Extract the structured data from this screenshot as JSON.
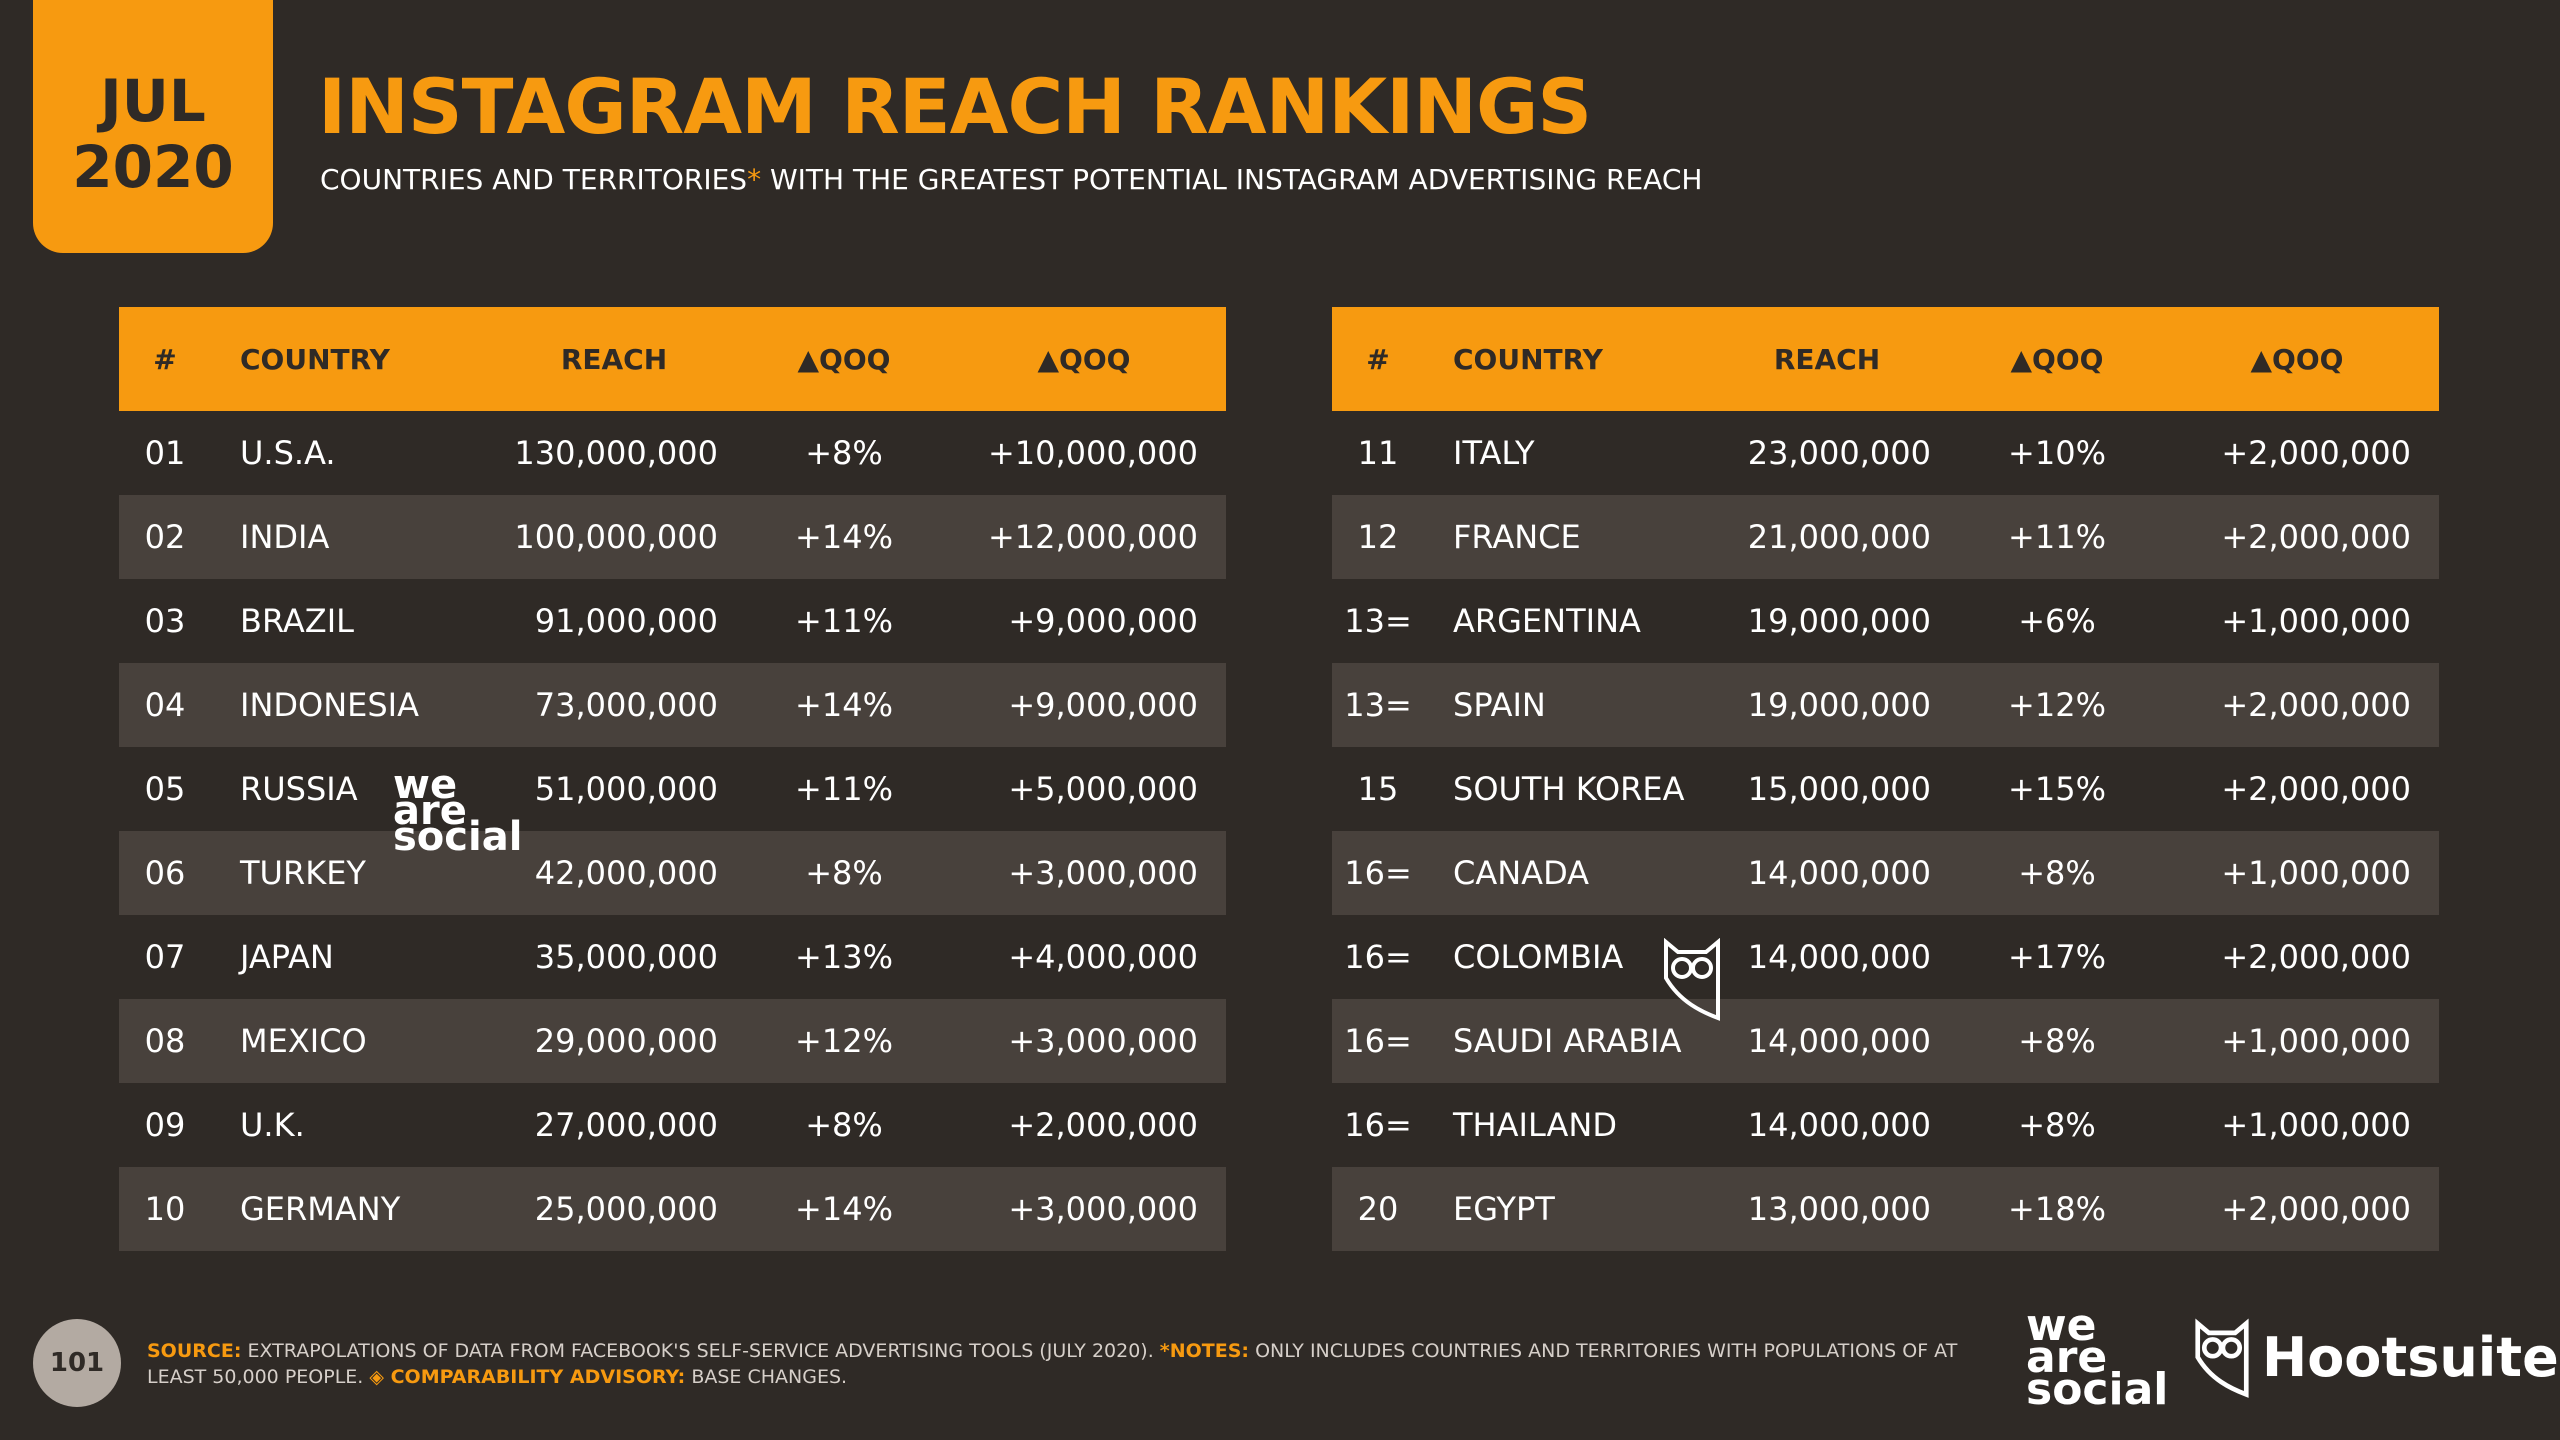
{
  "badge": {
    "month": "JUL",
    "year": "2020"
  },
  "header": {
    "title": "INSTAGRAM REACH RANKINGS",
    "subtitle_start": "COUNTRIES AND TERRITORIES",
    "subtitle_mark": "*",
    "subtitle_end": "WITH THE GREATEST POTENTIAL INSTAGRAM ADVERTISING REACH"
  },
  "tables": [
    {
      "columns": [
        "#",
        "COUNTRY",
        "REACH",
        "▲QOQ",
        "▲QOQ"
      ],
      "rows": [
        [
          "01",
          "U.S.A.",
          "130,000,000",
          "+8%",
          "+10,000,000"
        ],
        [
          "02",
          "INDIA",
          "100,000,000",
          "+14%",
          "+12,000,000"
        ],
        [
          "03",
          "BRAZIL",
          "91,000,000",
          "+11%",
          "+9,000,000"
        ],
        [
          "04",
          "INDONESIA",
          "73,000,000",
          "+14%",
          "+9,000,000"
        ],
        [
          "05",
          "RUSSIA",
          "51,000,000",
          "+11%",
          "+5,000,000"
        ],
        [
          "06",
          "TURKEY",
          "42,000,000",
          "+8%",
          "+3,000,000"
        ],
        [
          "07",
          "JAPAN",
          "35,000,000",
          "+13%",
          "+4,000,000"
        ],
        [
          "08",
          "MEXICO",
          "29,000,000",
          "+12%",
          "+3,000,000"
        ],
        [
          "09",
          "U.K.",
          "27,000,000",
          "+8%",
          "+2,000,000"
        ],
        [
          "10",
          "GERMANY",
          "25,000,000",
          "+14%",
          "+3,000,000"
        ]
      ]
    },
    {
      "columns": [
        "#",
        "COUNTRY",
        "REACH",
        "▲QOQ",
        "▲QOQ"
      ],
      "rows": [
        [
          "11",
          "ITALY",
          "23,000,000",
          "+10%",
          "+2,000,000"
        ],
        [
          "12",
          "FRANCE",
          "21,000,000",
          "+11%",
          "+2,000,000"
        ],
        [
          "13=",
          "ARGENTINA",
          "19,000,000",
          "+6%",
          "+1,000,000"
        ],
        [
          "13=",
          "SPAIN",
          "19,000,000",
          "+12%",
          "+2,000,000"
        ],
        [
          "15",
          "SOUTH KOREA",
          "15,000,000",
          "+15%",
          "+2,000,000"
        ],
        [
          "16=",
          "CANADA",
          "14,000,000",
          "+8%",
          "+1,000,000"
        ],
        [
          "16=",
          "COLOMBIA",
          "14,000,000",
          "+17%",
          "+2,000,000"
        ],
        [
          "16=",
          "SAUDI ARABIA",
          "14,000,000",
          "+8%",
          "+1,000,000"
        ],
        [
          "16=",
          "THAILAND",
          "14,000,000",
          "+8%",
          "+1,000,000"
        ],
        [
          "20",
          "EGYPT",
          "13,000,000",
          "+18%",
          "+2,000,000"
        ]
      ]
    }
  ],
  "watermark": {
    "line1": "we",
    "line2": "are",
    "line3": "social"
  },
  "footer": {
    "page": "101",
    "source_label": "SOURCE:",
    "source_text": "EXTRAPOLATIONS OF DATA FROM FACEBOOK'S SELF-SERVICE ADVERTISING TOOLS (JULY 2020).",
    "notes_label": "*NOTES:",
    "notes_text": "ONLY INCLUDES COUNTRIES AND TERRITORIES WITH POPULATIONS OF AT LEAST 50,000 PEOPLE.",
    "advisory_label": "◈ COMPARABILITY ADVISORY:",
    "advisory_text": "BASE CHANGES."
  },
  "logos": {
    "we": "we",
    "are": "are",
    "social": "social",
    "hootsuite": "Hootsuite",
    "registered": "®"
  }
}
